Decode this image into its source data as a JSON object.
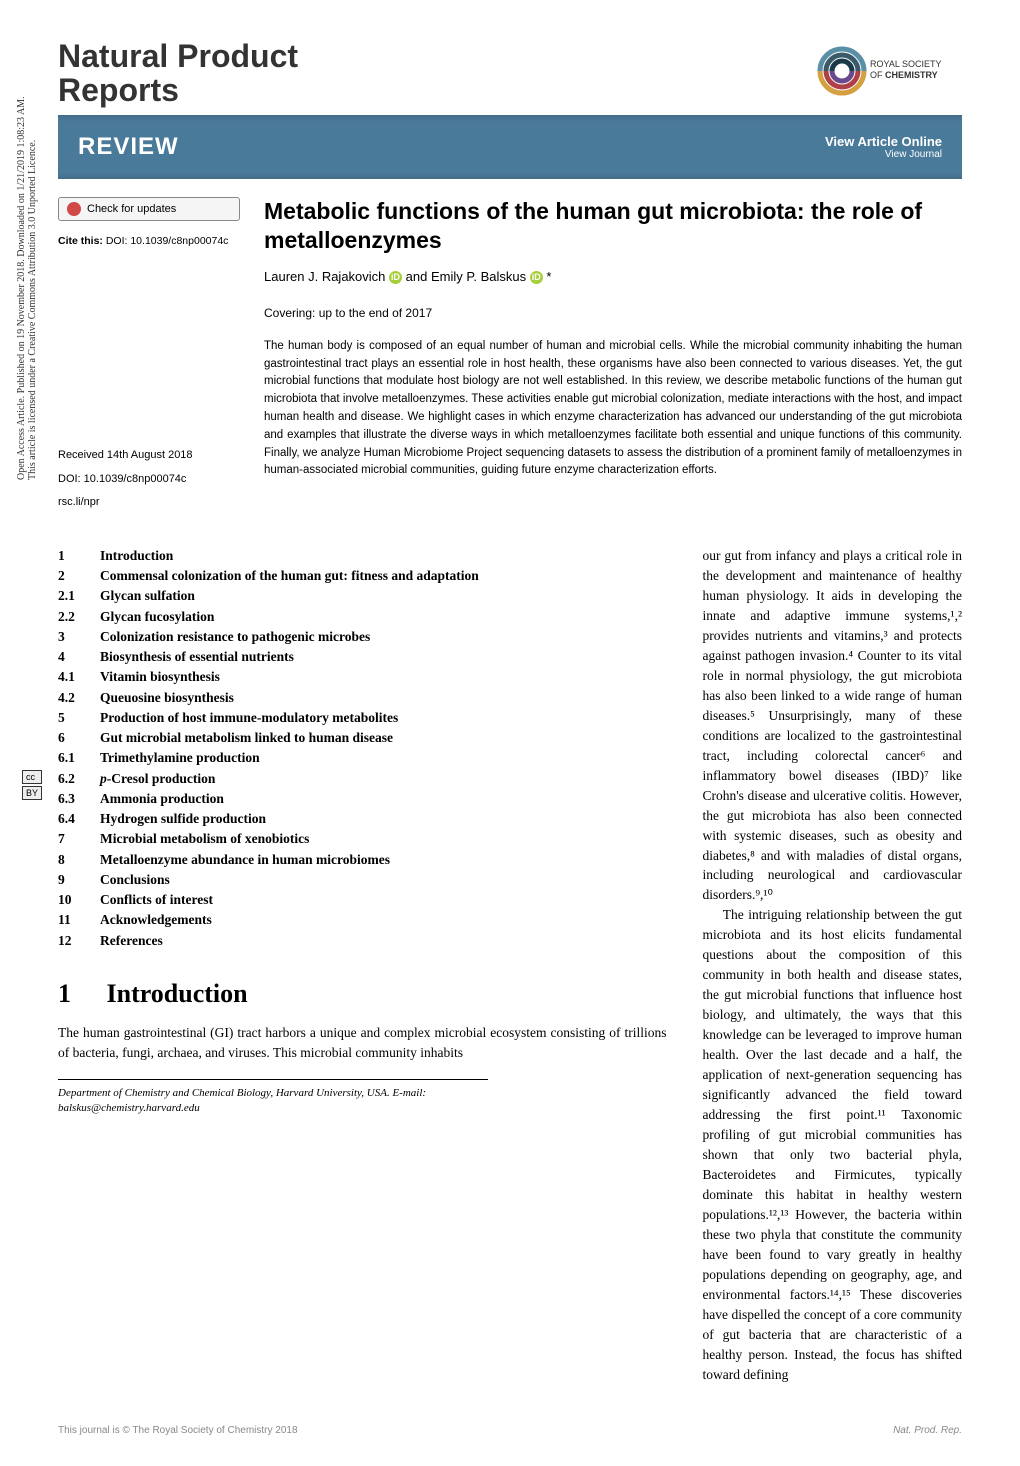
{
  "journal_title_line1": "Natural Product",
  "journal_title_line2": "Reports",
  "publisher": "ROYAL SOCIETY OF CHEMISTRY",
  "review_bar": {
    "label": "REVIEW",
    "view_article": "View Article Online",
    "view_journal": "View Journal"
  },
  "check_updates": "Check for updates",
  "cite": {
    "label": "Cite this:",
    "doi": "DOI: 10.1039/c8np00074c"
  },
  "meta": {
    "received": "Received 14th August 2018",
    "doi": "DOI: 10.1039/c8np00074c",
    "link": "rsc.li/npr"
  },
  "title": "Metabolic functions of the human gut microbiota: the role of metalloenzymes",
  "authors": {
    "a1": "Lauren J. Rajakovich",
    "and": " and ",
    "a2": "Emily P. Balskus",
    "star": "*"
  },
  "covering": "Covering: up to the end of 2017",
  "abstract": "The human body is composed of an equal number of human and microbial cells. While the microbial community inhabiting the human gastrointestinal tract plays an essential role in host health, these organisms have also been connected to various diseases. Yet, the gut microbial functions that modulate host biology are not well established. In this review, we describe metabolic functions of the human gut microbiota that involve metalloenzymes. These activities enable gut microbial colonization, mediate interactions with the host, and impact human health and disease. We highlight cases in which enzyme characterization has advanced our understanding of the gut microbiota and examples that illustrate the diverse ways in which metalloenzymes facilitate both essential and unique functions of this community. Finally, we analyze Human Microbiome Project sequencing datasets to assess the distribution of a prominent family of metalloenzymes in human-associated microbial communities, guiding future enzyme characterization efforts.",
  "toc": [
    {
      "n": "1",
      "t": "Introduction"
    },
    {
      "n": "2",
      "t": "Commensal colonization of the human gut: fitness and adaptation"
    },
    {
      "n": "2.1",
      "t": "Glycan sulfation"
    },
    {
      "n": "2.2",
      "t": "Glycan fucosylation"
    },
    {
      "n": "3",
      "t": "Colonization resistance to pathogenic microbes"
    },
    {
      "n": "4",
      "t": "Biosynthesis of essential nutrients"
    },
    {
      "n": "4.1",
      "t": "Vitamin biosynthesis"
    },
    {
      "n": "4.2",
      "t": "Queuosine biosynthesis"
    },
    {
      "n": "5",
      "t": "Production of host immune-modulatory metabolites"
    },
    {
      "n": "6",
      "t": "Gut microbial metabolism linked to human disease"
    },
    {
      "n": "6.1",
      "t": "Trimethylamine production"
    },
    {
      "n": "6.2",
      "t": "p-Cresol production"
    },
    {
      "n": "6.3",
      "t": "Ammonia production"
    },
    {
      "n": "6.4",
      "t": "Hydrogen sulfide production"
    },
    {
      "n": "7",
      "t": "Microbial metabolism of xenobiotics"
    },
    {
      "n": "8",
      "t": "Metalloenzyme abundance in human microbiomes"
    },
    {
      "n": "9",
      "t": "Conclusions"
    },
    {
      "n": "10",
      "t": "Conflicts of interest"
    },
    {
      "n": "11",
      "t": "Acknowledgements"
    },
    {
      "n": "12",
      "t": "References"
    }
  ],
  "section1": {
    "num": "1",
    "title": "Introduction",
    "text": "The human gastrointestinal (GI) tract harbors a unique and complex microbial ecosystem consisting of trillions of bacteria, fungi, archaea, and viruses. This microbial community inhabits"
  },
  "affiliation": "Department of Chemistry and Chemical Biology, Harvard University, USA. E-mail: balskus@chemistry.harvard.edu",
  "body_right_p1": "our gut from infancy and plays a critical role in the development and maintenance of healthy human physiology. It aids in developing the innate and adaptive immune systems,¹,² provides nutrients and vitamins,³ and protects against pathogen invasion.⁴ Counter to its vital role in normal physiology, the gut microbiota has also been linked to a wide range of human diseases.⁵ Unsurprisingly, many of these conditions are localized to the gastrointestinal tract, including colorectal cancer⁶ and inflammatory bowel diseases (IBD)⁷ like Crohn's disease and ulcerative colitis. However, the gut microbiota has also been connected with systemic diseases, such as obesity and diabetes,⁸ and with maladies of distal organs, including neurological and cardiovascular disorders.⁹,¹⁰",
  "body_right_p2": "The intriguing relationship between the gut microbiota and its host elicits fundamental questions about the composition of this community in both health and disease states, the gut microbial functions that influence host biology, and ultimately, the ways that this knowledge can be leveraged to improve human health. Over the last decade and a half, the application of next-generation sequencing has significantly advanced the field toward addressing the first point.¹¹ Taxonomic profiling of gut microbial communities has shown that only two bacterial phyla, Bacteroidetes and Firmicutes, typically dominate this habitat in healthy western populations.¹²,¹³ However, the bacteria within these two phyla that constitute the community have been found to vary greatly in healthy populations depending on geography, age, and environmental factors.¹⁴,¹⁵ These discoveries have dispelled the concept of a core community of gut bacteria that are characteristic of a healthy person. Instead, the focus has shifted toward defining",
  "footer": {
    "left": "This journal is © The Royal Society of Chemistry 2018",
    "right": "Nat. Prod. Rep."
  },
  "watermark": "Open Access Article. Published on 19 November 2018. Downloaded on 1/21/2019 1:08:23 AM.",
  "watermark2": "This article is licensed under a Creative Commons Attribution 3.0 Unported Licence.",
  "cc": {
    "cc": "cc",
    "by": "BY"
  },
  "colors": {
    "review_bar": "#4a7a99",
    "orcid": "#a6ce39",
    "footer_text": "#888888"
  }
}
